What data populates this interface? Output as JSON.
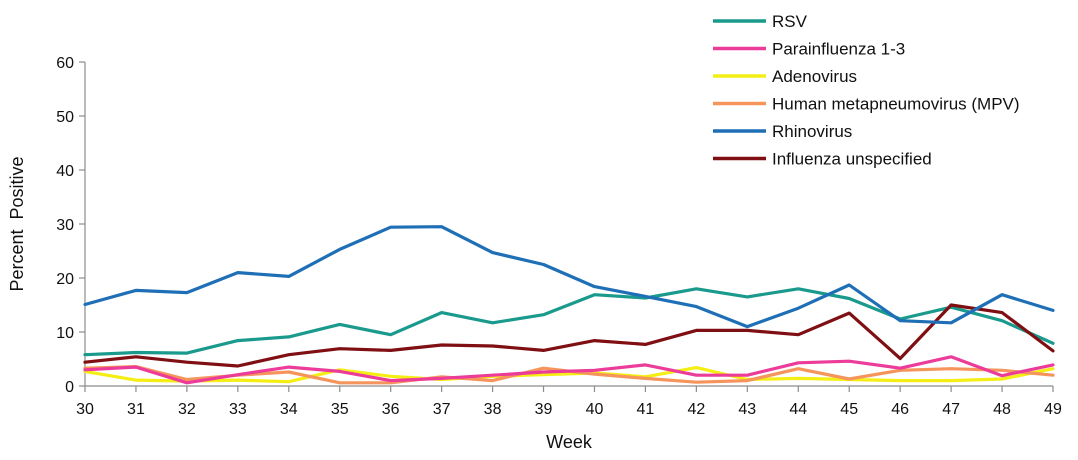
{
  "chart_data": {
    "type": "line",
    "title": "",
    "xlabel": "Week",
    "ylabel": "Percent  Positive",
    "x": [
      "30",
      "31",
      "32",
      "33",
      "34",
      "35",
      "36",
      "37",
      "38",
      "39",
      "40",
      "41",
      "42",
      "43",
      "44",
      "45",
      "46",
      "47",
      "48",
      "49"
    ],
    "ylim": [
      0,
      60
    ],
    "yticks": [
      "0",
      "10",
      "20",
      "30",
      "40",
      "50",
      "60"
    ],
    "grid": false,
    "legend_position": "top-right",
    "series": [
      {
        "name": "RSV",
        "color": "#1a9a8c",
        "values": [
          5.8,
          6.2,
          6.1,
          8.4,
          9.1,
          11.4,
          9.5,
          13.6,
          11.7,
          13.2,
          16.9,
          16.3,
          18.0,
          16.5,
          18.0,
          16.2,
          12.4,
          14.6,
          12.1,
          7.9
        ]
      },
      {
        "name": "Parainfluenza 1-3",
        "color": "#ec3c9a",
        "values": [
          3.0,
          3.5,
          0.6,
          2.1,
          3.5,
          2.7,
          1.0,
          1.4,
          2.0,
          2.6,
          2.9,
          3.9,
          2.0,
          2.0,
          4.3,
          4.6,
          3.3,
          5.4,
          1.9,
          3.9
        ]
      },
      {
        "name": "Adenovirus",
        "color": "#f4ee14",
        "values": [
          2.7,
          1.1,
          0.9,
          1.1,
          0.8,
          3.0,
          1.8,
          1.2,
          1.8,
          2.1,
          2.4,
          1.7,
          3.4,
          1.2,
          1.4,
          1.2,
          1.0,
          1.0,
          1.3,
          3.2
        ]
      },
      {
        "name": "Human metapneumovirus (MPV)",
        "color": "#f5955c",
        "values": [
          3.3,
          3.6,
          1.2,
          2.0,
          2.6,
          0.6,
          0.6,
          1.7,
          1.0,
          3.3,
          2.2,
          1.4,
          0.7,
          1.0,
          3.2,
          1.3,
          2.9,
          3.2,
          2.9,
          2.0
        ]
      },
      {
        "name": "Rhinovirus",
        "color": "#1e6fb6",
        "values": [
          15.1,
          17.7,
          17.3,
          21.0,
          20.3,
          25.3,
          29.4,
          29.5,
          24.7,
          22.5,
          18.4,
          16.6,
          14.7,
          11.0,
          14.4,
          18.7,
          12.1,
          11.7,
          16.9,
          14.0
        ]
      },
      {
        "name": "Influenza unspecified",
        "color": "#7f0f12",
        "values": [
          4.4,
          5.4,
          4.4,
          3.7,
          5.8,
          6.9,
          6.6,
          7.6,
          7.4,
          6.6,
          8.4,
          7.7,
          10.3,
          10.3,
          9.5,
          13.5,
          5.1,
          15.0,
          13.6,
          6.5
        ]
      }
    ]
  }
}
